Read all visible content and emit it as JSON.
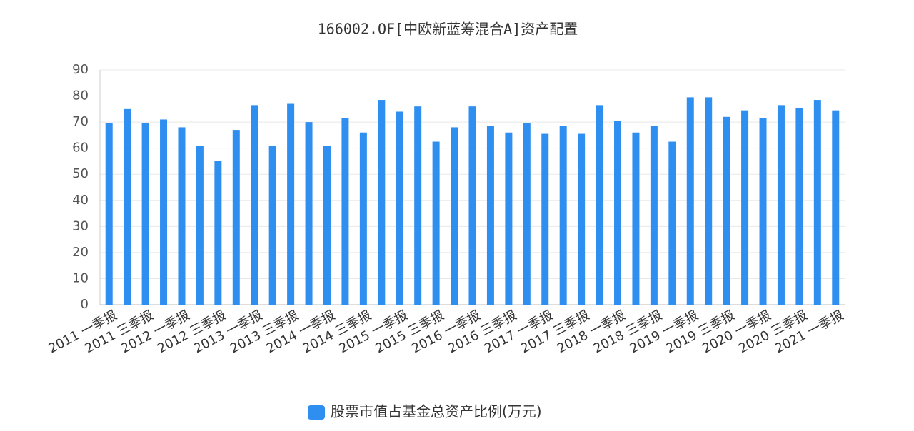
{
  "chart_data": {
    "type": "bar",
    "title": "166002.OF[中欧新蓝筹混合A]资产配置",
    "categories": [
      "2011 一季报",
      null,
      "2011 三季报",
      null,
      "2012 一季报",
      null,
      "2012 三季报",
      null,
      "2013 一季报",
      null,
      "2013 三季报",
      null,
      "2014 一季报",
      null,
      "2014 三季报",
      null,
      "2015 一季报",
      null,
      "2015 三季报",
      null,
      "2016 一季报",
      null,
      "2016 三季报",
      null,
      "2017 一季报",
      null,
      "2017 三季报",
      null,
      "2018 一季报",
      null,
      "2018 三季报",
      null,
      "2019 一季报",
      null,
      "2019 三季报",
      null,
      "2020 一季报",
      null,
      "2020 三季报",
      null,
      "2021 一季报"
    ],
    "series": [
      {
        "name": "股票市值占基金总资产比例(万元)",
        "color": "#2f8ff0",
        "values": [
          69.5,
          75,
          69.5,
          71,
          68,
          61,
          55,
          67,
          76.5,
          61,
          77,
          70,
          61,
          71.5,
          66,
          78.5,
          74,
          76,
          62.5,
          68,
          76,
          68.5,
          66,
          69.5,
          65.5,
          68.5,
          65.5,
          76.5,
          70.5,
          66,
          68.5,
          62.5,
          79.5,
          79.5,
          72,
          74.5,
          71.5,
          76.5,
          75.5,
          78.5,
          74.5
        ]
      }
    ],
    "ylim": [
      0,
      90
    ],
    "yticks": [
      0,
      10,
      20,
      30,
      40,
      50,
      60,
      70,
      80,
      90
    ],
    "grid": true,
    "legend": "bottom"
  }
}
